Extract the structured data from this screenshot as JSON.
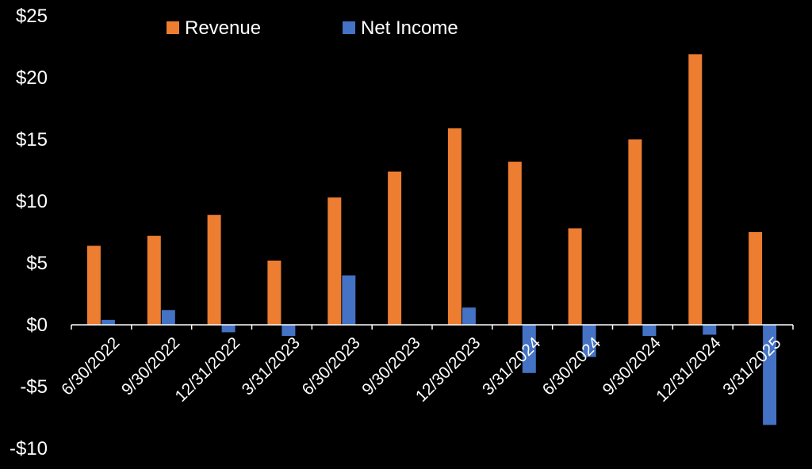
{
  "chart_data": {
    "type": "bar",
    "categories": [
      "6/30/2022",
      "9/30/2022",
      "12/31/2022",
      "3/31/2023",
      "6/30/2023",
      "9/30/2023",
      "12/30/2023",
      "3/31/2024",
      "6/30/2024",
      "9/30/2024",
      "12/31/2024",
      "3/31/2025"
    ],
    "series": [
      {
        "name": "Revenue",
        "color": "#ED7D31",
        "values": [
          6.4,
          7.2,
          8.9,
          5.2,
          10.3,
          12.4,
          15.9,
          13.2,
          7.8,
          15.0,
          21.9,
          7.5
        ]
      },
      {
        "name": "Net Income",
        "color": "#4472C4",
        "values": [
          0.4,
          1.2,
          -0.6,
          -0.9,
          4.0,
          0.0,
          1.4,
          -3.9,
          -2.6,
          -0.9,
          -0.8,
          -8.1
        ]
      }
    ],
    "ylim": [
      -10,
      25
    ],
    "yticks": [
      -10,
      -5,
      0,
      5,
      10,
      15,
      20,
      25
    ],
    "ytick_labels": [
      "-$10",
      "-$5",
      "$0",
      "$5",
      "$10",
      "$15",
      "$20",
      "$25"
    ],
    "title": "",
    "xlabel": "",
    "ylabel": "",
    "grid": false,
    "legend_position": "top",
    "background": "#000000",
    "axis_color": "#ffffff"
  }
}
